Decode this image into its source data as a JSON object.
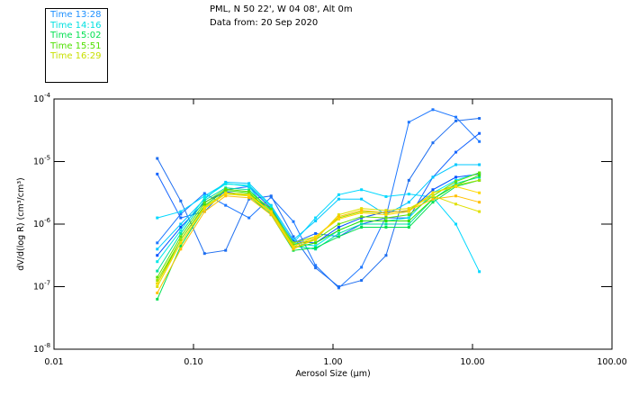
{
  "header": {
    "location": "PML, N 50 22', W 04 08', Alt 0m",
    "date": "Data from: 20 Sep 2020"
  },
  "chart_data": {
    "type": "line",
    "xlabel": "Aerosol Size (μm)",
    "ylabel": "dV/d(log R) (cm³/cm³)",
    "xscale": "log",
    "yscale": "log",
    "xlim": [
      0.01,
      100
    ],
    "ylim": [
      1e-08,
      0.0001
    ],
    "xticks": [
      "0.01",
      "0.10",
      "1.00",
      "10.00",
      "100.00"
    ],
    "yticks": [
      {
        "base": "10",
        "exp": "-4"
      },
      {
        "base": "10",
        "exp": "-5"
      },
      {
        "base": "10",
        "exp": "-6"
      },
      {
        "base": "10",
        "exp": "-7"
      },
      {
        "base": "10",
        "exp": "-8"
      }
    ],
    "legend": {
      "placement": "top-left",
      "entries": [
        {
          "label": "Time 13:28",
          "color": "#1e90ff"
        },
        {
          "label": "Time 14:16",
          "color": "#00e0e0"
        },
        {
          "label": "Time 15:02",
          "color": "#00e050"
        },
        {
          "label": "Time 15:51",
          "color": "#50e000"
        },
        {
          "label": "Time 16:29",
          "color": "#c8e000"
        }
      ]
    },
    "x": [
      0.055,
      0.081,
      0.12,
      0.17,
      0.25,
      0.36,
      0.52,
      0.75,
      1.1,
      1.6,
      2.4,
      3.5,
      5.2,
      7.6,
      11.2
    ],
    "series_log10": [
      {
        "color": "#1e78ff",
        "values": [
          -6.3,
          -5.84,
          -5.51,
          -5.7,
          -5.9,
          -5.57,
          -5.96,
          -6.66,
          -7.02,
          -6.69,
          -5.88,
          -4.37,
          -4.17,
          -4.29,
          -4.68
        ]
      },
      {
        "color": "#1e6ef0",
        "values": [
          -4.95,
          -5.63,
          -6.47,
          -6.42,
          -5.6,
          -5.55,
          -6.2,
          -6.7,
          -7.0,
          -6.9,
          -6.5,
          -5.3,
          -4.7,
          -4.35,
          -4.31
        ]
      },
      {
        "color": "#1464ff",
        "values": [
          -5.2,
          -5.9,
          -5.8,
          -5.45,
          -5.4,
          -5.75,
          -6.3,
          -6.15,
          -6.2,
          -6.0,
          -5.9,
          -5.9,
          -5.25,
          -4.85,
          -4.55
        ]
      },
      {
        "color": "#00d8ff",
        "values": [
          -5.9,
          -5.8,
          -5.55,
          -5.35,
          -5.4,
          -5.85,
          -6.3,
          -5.9,
          -5.53,
          -5.45,
          -5.56,
          -5.52,
          -5.57,
          -6.0,
          -6.76
        ]
      },
      {
        "color": "#00c8ff",
        "values": [
          -6.4,
          -6.0,
          -5.6,
          -5.33,
          -5.35,
          -5.7,
          -6.25,
          -5.95,
          -5.6,
          -5.6,
          -5.85,
          -5.65,
          -5.25,
          -5.05,
          -5.05
        ]
      },
      {
        "color": "#0050ff",
        "values": [
          -6.5,
          -6.05,
          -5.65,
          -5.48,
          -5.55,
          -5.75,
          -6.28,
          -6.3,
          -6.05,
          -5.9,
          -5.8,
          -5.8,
          -5.45,
          -5.25,
          -5.2
        ]
      },
      {
        "color": "#00e8e8",
        "values": [
          -6.6,
          -6.1,
          -5.58,
          -5.36,
          -5.38,
          -5.72,
          -6.3,
          -6.35,
          -6.1,
          -5.95,
          -5.95,
          -5.9,
          -5.5,
          -5.3,
          -5.18
        ]
      },
      {
        "color": "#00e0a0",
        "values": [
          -6.75,
          -6.15,
          -5.62,
          -5.42,
          -5.45,
          -5.78,
          -6.35,
          -6.4,
          -6.15,
          -6.0,
          -6.0,
          -6.0,
          -5.6,
          -5.35,
          -5.25
        ]
      },
      {
        "color": "#00e050",
        "values": [
          -7.2,
          -6.35,
          -5.75,
          -5.5,
          -5.55,
          -5.85,
          -6.42,
          -6.38,
          -6.2,
          -6.05,
          -6.05,
          -6.05,
          -5.65,
          -5.4,
          -5.3
        ]
      },
      {
        "color": "#30e000",
        "values": [
          -6.95,
          -6.25,
          -5.7,
          -5.46,
          -5.5,
          -5.8,
          -6.38,
          -6.3,
          -6.1,
          -5.95,
          -5.95,
          -5.95,
          -5.6,
          -5.38,
          -5.22
        ]
      },
      {
        "color": "#60e000",
        "values": [
          -6.85,
          -6.2,
          -5.66,
          -5.44,
          -5.48,
          -5.76,
          -6.33,
          -6.25,
          -6.0,
          -5.88,
          -5.9,
          -5.85,
          -5.55,
          -5.32,
          -5.18
        ]
      },
      {
        "color": "#a0e000",
        "values": [
          -6.9,
          -6.25,
          -5.72,
          -5.5,
          -5.52,
          -5.8,
          -6.3,
          -6.2,
          -5.9,
          -5.8,
          -5.82,
          -5.78,
          -5.5,
          -5.38,
          -5.3
        ]
      },
      {
        "color": "#e0e000",
        "values": [
          -7.0,
          -6.3,
          -5.75,
          -5.52,
          -5.55,
          -5.82,
          -6.38,
          -6.25,
          -5.85,
          -5.75,
          -5.78,
          -5.75,
          -5.55,
          -5.68,
          -5.8
        ]
      },
      {
        "color": "#ffc000",
        "values": [
          -7.1,
          -6.4,
          -5.8,
          -5.55,
          -5.58,
          -5.85,
          -6.4,
          -6.22,
          -5.88,
          -5.78,
          -5.82,
          -5.78,
          -5.6,
          -5.55,
          -5.65
        ]
      },
      {
        "color": "#ffd800",
        "values": [
          -6.95,
          -6.3,
          -5.74,
          -5.5,
          -5.54,
          -5.8,
          -6.36,
          -6.2,
          -5.92,
          -5.82,
          -5.85,
          -5.8,
          -5.5,
          -5.4,
          -5.5
        ]
      }
    ]
  }
}
